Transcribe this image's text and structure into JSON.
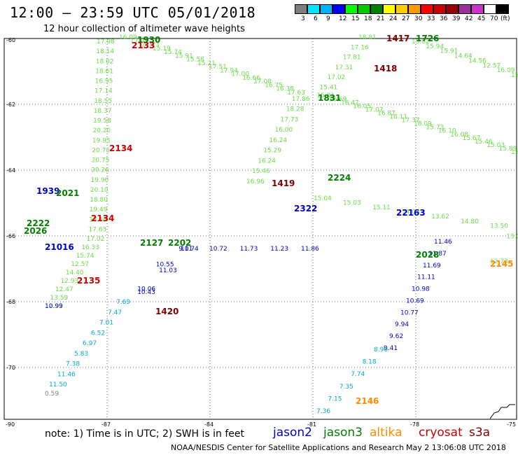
{
  "header": {
    "title": "12:00 – 23:59 UTC 05/01/2018",
    "subtitle": "12 hour collection of altimeter wave heights"
  },
  "legend": {
    "colors": [
      "#7f7f7f",
      "#00e5ff",
      "#00b4ff",
      "#0000ff",
      "#00ff00",
      "#00cc00",
      "#008000",
      "#ffff00",
      "#ffcc00",
      "#ff9900",
      "#ff0000",
      "#cc0000",
      "#990000",
      "#993399",
      "#cc33cc",
      "#ffffff",
      "#000000"
    ],
    "labels": [
      "3",
      "6",
      "9",
      "12",
      "15",
      "18",
      "21",
      "24",
      "27",
      "30",
      "33",
      "36",
      "39",
      "42",
      "45",
      "70",
      "(ft)"
    ]
  },
  "axes": {
    "lat_labels": [
      "-60",
      "-62",
      "-64",
      "-66",
      "-68",
      "-70"
    ],
    "lon_labels": [
      "-90",
      "-87",
      "-84",
      "-81",
      "-78",
      "-75"
    ]
  },
  "tracks": [
    {
      "name": "t1",
      "color": "#66dd44",
      "labels": [
        "17.98",
        "18.14",
        "18.02",
        "18.61",
        "16.95",
        "17.14",
        "18.55",
        "18.37",
        "19.58",
        "20.20",
        "19.95",
        "20.75",
        "20.75",
        "20.26",
        "19.90",
        "20.10",
        "18.80",
        "19.49",
        "18.85",
        "17.63",
        "17.02",
        "16.33",
        "15.74",
        "12.57",
        "14.40",
        "12.93",
        "12.47",
        "13.59",
        "12.91"
      ]
    },
    {
      "name": "t2",
      "color": "#66dd44",
      "labels": [
        "16.09",
        "17.03",
        "17.73",
        "15.19",
        "15.74",
        "15.91",
        "15.58",
        "15.21",
        "17.51",
        "17.94",
        "17.00",
        "16.66",
        "17.08",
        "16.75",
        "16.38",
        "17.63",
        "17.86",
        "18.28",
        "17.73",
        "16.00",
        "16.24",
        "15.29",
        "16.24",
        "15.46",
        "16.96"
      ]
    },
    {
      "name": "t3",
      "color": "#66dd44",
      "labels": [
        "18.81",
        "17.16",
        "17.81",
        "17.31",
        "17.02",
        "15.41",
        "16.81",
        "16.69",
        "16.47",
        "16.05",
        "17.07",
        "16.87",
        "18.11",
        "17.37",
        "18.09",
        "15.73",
        "16.10",
        "16.08",
        "15.67",
        "15.46",
        "15.03",
        "15.89",
        "15.79"
      ]
    },
    {
      "name": "t4",
      "color": "#66dd44",
      "labels": [
        "15.82",
        "15.94",
        "15.91",
        "14.64",
        "14.56",
        "12.57",
        "16.09",
        "15.08"
      ]
    },
    {
      "name": "t5",
      "color": "#0000cc",
      "labels": [
        "11.74",
        "11.03",
        "10.43",
        "10.06",
        "10.55",
        "9.01",
        "10.72",
        "11.73",
        "11.23",
        "11.86"
      ]
    },
    {
      "name": "t6",
      "color": "#0000cc",
      "labels": [
        "11.46",
        "11.87",
        "11.69",
        "11.11",
        "10.98",
        "10.69",
        "10.77",
        "9.94",
        "9.62",
        "9.41"
      ]
    },
    {
      "name": "t7",
      "color": "#00a8cc",
      "labels": [
        "7.69",
        "7.47",
        "7.01",
        "6.52",
        "6.97",
        "5.83",
        "7.38",
        "11.46",
        "11.50"
      ]
    },
    {
      "name": "t8",
      "color": "#00a8cc",
      "labels": [
        "8.90",
        "8.18",
        "7.74",
        "7.35",
        "7.15",
        "7.36"
      ]
    },
    {
      "name": "t9",
      "color": "#66dd44",
      "labels": [
        "15.04",
        "15.03",
        "15.11",
        "14.03",
        "13.62",
        "14.80",
        "13.50",
        "13.07",
        "12.73"
      ]
    },
    {
      "name": "t10",
      "color": "#0000cc",
      "labels": [
        "10.99"
      ]
    },
    {
      "name": "t11",
      "color": "#808080",
      "labels": [
        "0.59"
      ]
    }
  ],
  "time_labels": [
    {
      "text": "1930",
      "color": "#008000"
    },
    {
      "text": "2133",
      "color": "#cc0000"
    },
    {
      "text": "1417",
      "color": "#800000"
    },
    {
      "text": "1726",
      "color": "#008000"
    },
    {
      "text": "1418",
      "color": "#800000"
    },
    {
      "text": "1831",
      "color": "#008000"
    },
    {
      "text": "2134",
      "color": "#cc0000"
    },
    {
      "text": "1419",
      "color": "#800000"
    },
    {
      "text": "2224",
      "color": "#008000"
    },
    {
      "text": "1939",
      "color": "#0000cc"
    },
    {
      "text": "2021",
      "color": "#008000"
    },
    {
      "text": "2134",
      "color": "#cc0000"
    },
    {
      "text": "2222",
      "color": "#008000"
    },
    {
      "text": "2026",
      "color": "#008000"
    },
    {
      "text": "2127",
      "color": "#008000"
    },
    {
      "text": "2202",
      "color": "#008000"
    },
    {
      "text": "21016",
      "color": "#0000cc"
    },
    {
      "text": "2135",
      "color": "#cc0000"
    },
    {
      "text": "1420",
      "color": "#800000"
    },
    {
      "text": "2322",
      "color": "#0000cc"
    },
    {
      "text": "22163",
      "color": "#0000cc"
    },
    {
      "text": "2028",
      "color": "#008000"
    },
    {
      "text": "2145",
      "color": "#ff8c00"
    },
    {
      "text": "2146",
      "color": "#ff8c00"
    }
  ],
  "footer": {
    "note": "note:  1) Time is in UTC;  2) SWH is in feet",
    "satellites": [
      {
        "name": "jason2",
        "color": "#0000cc"
      },
      {
        "name": "jason3",
        "color": "#008000"
      },
      {
        "name": "altika",
        "color": "#ff8c00"
      },
      {
        "name": "cryosat",
        "color": "#cc0000"
      },
      {
        "name": "s3a",
        "color": "#800000"
      }
    ],
    "credit": "NOAA/NESDIS Center for Satellite Applications and Research",
    "timestamp": "May  2 13:06:08 UTC 2018"
  }
}
